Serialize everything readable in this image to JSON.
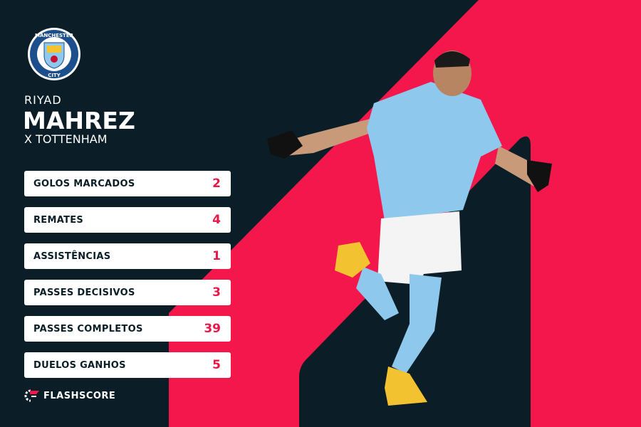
{
  "colors": {
    "background": "#0b1e28",
    "accent": "#f3174b",
    "jersey": "#8ec8ec"
  },
  "club": {
    "name": "Manchester City",
    "crest_top": "MANCHESTER",
    "crest_bottom": "CITY"
  },
  "player": {
    "first_name": "RIYAD",
    "last_name": "MAHREZ",
    "opponent": "X TOTTENHAM"
  },
  "stats": [
    {
      "label": "GOLOS MARCADOS",
      "value": "2"
    },
    {
      "label": "REMATES",
      "value": "4"
    },
    {
      "label": "ASSISTÊNCIAS",
      "value": "1"
    },
    {
      "label": "PASSES DECISIVOS",
      "value": "3"
    },
    {
      "label": "PASSES COMPLETOS",
      "value": "39"
    },
    {
      "label": "DUELOS GANHOS",
      "value": "5"
    }
  ],
  "brand": {
    "name": "FLASHSCORE"
  }
}
